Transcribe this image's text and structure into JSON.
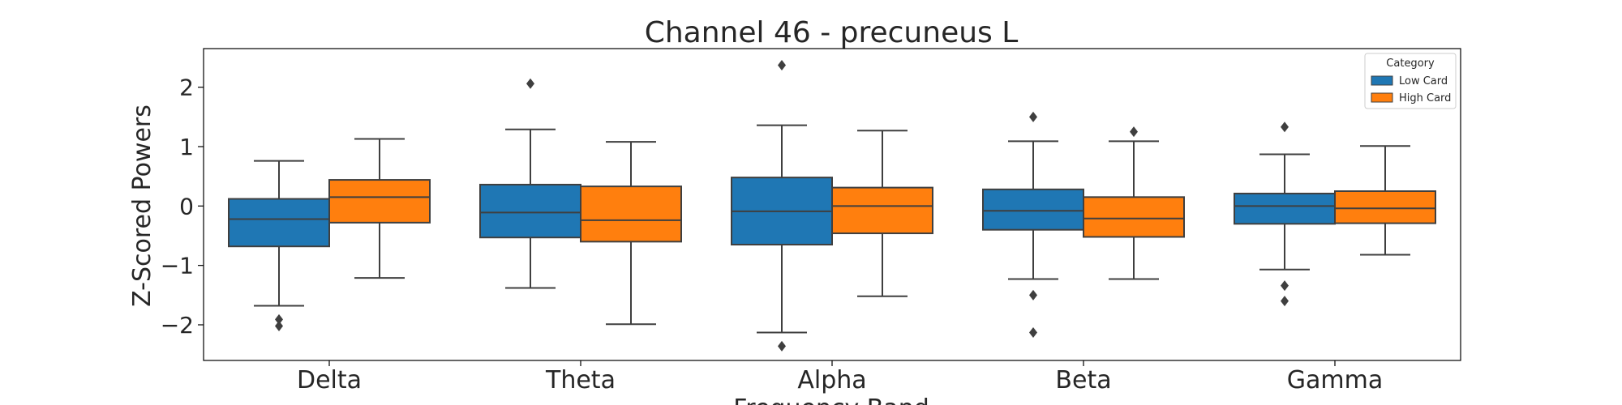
{
  "chart_data": {
    "type": "box",
    "title": "Channel 46 - precuneus L",
    "xlabel": "Frequency Band",
    "ylabel": "Z-Scored Powers",
    "ylim": [
      -2.6,
      2.65
    ],
    "yticks": [
      2,
      1,
      0,
      -1,
      -2
    ],
    "ytick_labels": [
      "2",
      "1",
      "0",
      "−1",
      "−2"
    ],
    "categories": [
      "Delta",
      "Theta",
      "Alpha",
      "Beta",
      "Gamma"
    ],
    "legend": {
      "title": "Category",
      "position": "top-right"
    },
    "series": [
      {
        "name": "Low Card",
        "color": "#1f77b4",
        "boxes": [
          {
            "whisker_low": -1.68,
            "q1": -0.68,
            "median": -0.22,
            "q3": 0.12,
            "whisker_high": 0.76,
            "outliers": [
              -1.91,
              -2.02
            ]
          },
          {
            "whisker_low": -1.38,
            "q1": -0.53,
            "median": -0.11,
            "q3": 0.36,
            "whisker_high": 1.29,
            "outliers": [
              2.06
            ]
          },
          {
            "whisker_low": -2.13,
            "q1": -0.65,
            "median": -0.09,
            "q3": 0.48,
            "whisker_high": 1.36,
            "outliers": [
              2.37,
              -2.36
            ]
          },
          {
            "whisker_low": -1.23,
            "q1": -0.4,
            "median": -0.08,
            "q3": 0.28,
            "whisker_high": 1.09,
            "outliers": [
              1.5,
              -1.5,
              -2.13
            ]
          },
          {
            "whisker_low": -1.07,
            "q1": -0.3,
            "median": 0.0,
            "q3": 0.21,
            "whisker_high": 0.87,
            "outliers": [
              1.33,
              -1.34,
              -1.6
            ]
          }
        ]
      },
      {
        "name": "High Card",
        "color": "#ff7f0e",
        "boxes": [
          {
            "whisker_low": -1.21,
            "q1": -0.28,
            "median": 0.15,
            "q3": 0.44,
            "whisker_high": 1.13,
            "outliers": []
          },
          {
            "whisker_low": -1.99,
            "q1": -0.6,
            "median": -0.24,
            "q3": 0.33,
            "whisker_high": 1.08,
            "outliers": []
          },
          {
            "whisker_low": -1.52,
            "q1": -0.46,
            "median": 0.0,
            "q3": 0.31,
            "whisker_high": 1.27,
            "outliers": []
          },
          {
            "whisker_low": -1.23,
            "q1": -0.52,
            "median": -0.21,
            "q3": 0.15,
            "whisker_high": 1.09,
            "outliers": [
              1.25
            ]
          },
          {
            "whisker_low": -0.82,
            "q1": -0.29,
            "median": -0.04,
            "q3": 0.25,
            "whisker_high": 1.01,
            "outliers": []
          }
        ]
      }
    ]
  }
}
